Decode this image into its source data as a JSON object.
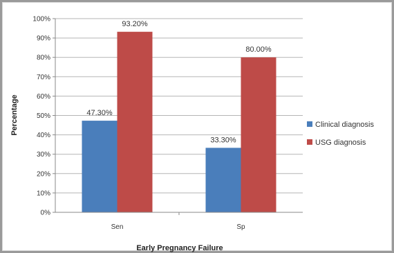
{
  "chart_data": {
    "type": "bar",
    "categories": [
      "Sen",
      "Sp"
    ],
    "series": [
      {
        "name": "Clinical diagnosis",
        "values": [
          47.3,
          33.3
        ],
        "labels": [
          "47.30%",
          "33.30%"
        ],
        "color": "#4a7ebb"
      },
      {
        "name": "USG diagnosis",
        "values": [
          93.2,
          80.0
        ],
        "labels": [
          "93.20%",
          "80.00%"
        ],
        "color": "#be4b48"
      }
    ],
    "xlabel": "Early Pregnancy Failure",
    "ylabel": "Percentage",
    "ylim": [
      0,
      100
    ],
    "yticks": [
      "0%",
      "10%",
      "20%",
      "30%",
      "40%",
      "50%",
      "60%",
      "70%",
      "80%",
      "90%",
      "100%"
    ],
    "grid": true,
    "legend_position": "right"
  }
}
